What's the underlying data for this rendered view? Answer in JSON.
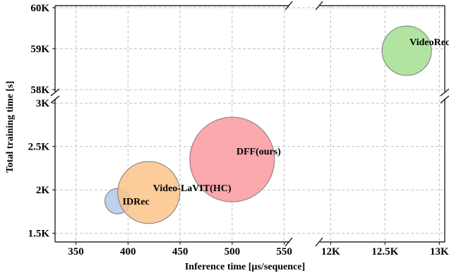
{
  "chart_data": {
    "type": "scatter",
    "style": "bubble",
    "xlabel": "Inference time [µs/sequence]",
    "ylabel": "Total training time [s]",
    "grid": true,
    "x_axis_segments": [
      {
        "range": [
          330,
          555
        ],
        "ticks": [
          350,
          400,
          450,
          500,
          550
        ],
        "tick_labels": [
          "350",
          "400",
          "450",
          "500",
          "550"
        ]
      },
      {
        "range": [
          11900,
          13050
        ],
        "ticks": [
          12000,
          12500,
          13000
        ],
        "tick_labels": [
          "12K",
          "12.5K",
          "13K"
        ]
      }
    ],
    "y_axis_segments": [
      {
        "range": [
          1400,
          3050
        ],
        "ticks": [
          1500,
          2000,
          2500,
          3000
        ],
        "tick_labels": [
          "1.5K",
          "2K",
          "2.5K",
          "3K"
        ]
      },
      {
        "range": [
          57950,
          60050
        ],
        "ticks": [
          58000,
          59000,
          60000
        ],
        "tick_labels": [
          "58K",
          "59K",
          "60K"
        ]
      }
    ],
    "points": [
      {
        "label": "IDRec",
        "x": 390,
        "y": 1870,
        "color": "#b3c8e6"
      },
      {
        "label": "Video-LaVIT(HC)",
        "x": 420,
        "y": 1970,
        "color": "#fdc38a"
      },
      {
        "label": "DFF(ours)",
        "x": 500,
        "y": 2350,
        "color": "#fa9a9e"
      },
      {
        "label": "VideoRec",
        "x": 12700,
        "y": 58950,
        "color": "#a3df90"
      }
    ]
  }
}
